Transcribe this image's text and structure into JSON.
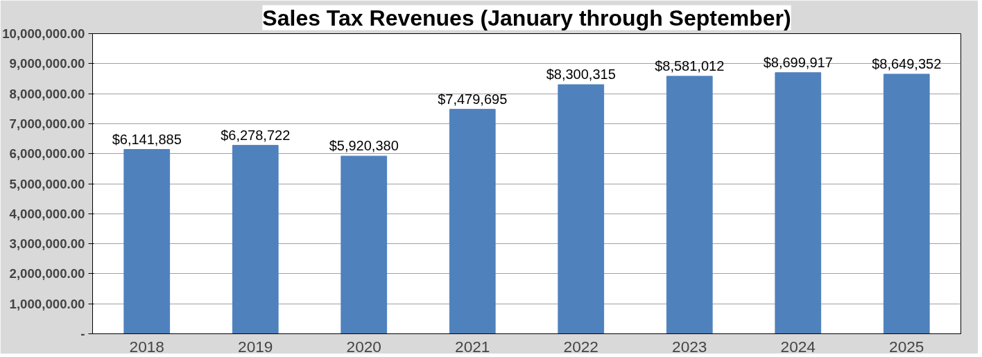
{
  "chart_data": {
    "type": "bar",
    "title": "Sales Tax Revenues (January through September)",
    "categories": [
      "2018",
      "2019",
      "2020",
      "2021",
      "2022",
      "2023",
      "2024",
      "2025"
    ],
    "values": [
      6141885,
      6278722,
      5920380,
      7479695,
      8300315,
      8581012,
      8699917,
      8649352
    ],
    "value_labels": [
      "$6,141,885",
      "$6,278,722",
      "$5,920,380",
      "$7,479,695",
      "$8,300,315",
      "$8,581,012",
      "$8,699,917",
      "$8,649,352"
    ],
    "color": "#4f81bd",
    "ylim": [
      0,
      10000000
    ],
    "yticks": [
      {
        "value": 0,
        "label": "-"
      },
      {
        "value": 1000000,
        "label": "1,000,000.00"
      },
      {
        "value": 2000000,
        "label": "2,000,000.00"
      },
      {
        "value": 3000000,
        "label": "3,000,000.00"
      },
      {
        "value": 4000000,
        "label": "4,000,000.00"
      },
      {
        "value": 5000000,
        "label": "5,000,000.00"
      },
      {
        "value": 6000000,
        "label": "6,000,000.00"
      },
      {
        "value": 7000000,
        "label": "7,000,000.00"
      },
      {
        "value": 8000000,
        "label": "8,000,000.00"
      },
      {
        "value": 9000000,
        "label": "9,000,000.00"
      },
      {
        "value": 10000000,
        "label": "10,000,000.00"
      }
    ],
    "grid": "y"
  }
}
